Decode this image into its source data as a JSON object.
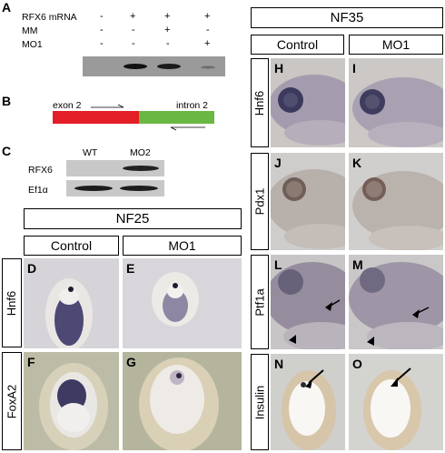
{
  "panelA": {
    "letter": "A",
    "rows": [
      {
        "label": "RFX6 mRNA",
        "marks": [
          "-",
          "+",
          "+",
          "+"
        ]
      },
      {
        "label": "MM",
        "marks": [
          "-",
          "-",
          "+",
          "-"
        ]
      },
      {
        "label": "MO1",
        "marks": [
          "-",
          "-",
          "-",
          "+"
        ]
      }
    ]
  },
  "panelB": {
    "letter": "B",
    "exon_label": "exon 2",
    "intron_label": "intron 2",
    "colors": {
      "exon": "#e31e26",
      "intron": "#6ab843"
    }
  },
  "panelC": {
    "letter": "C",
    "col_wt": "WT",
    "col_mo2": "MO2",
    "row_rfx6": "RFX6",
    "row_ef1a": "Ef1α"
  },
  "nf25": {
    "stage": "NF25",
    "col_control": "Control",
    "col_mo1": "MO1",
    "row_hnf6": "Hnf6",
    "row_foxa2": "FoxA2",
    "letters": {
      "D": "D",
      "E": "E",
      "F": "F",
      "G": "G"
    }
  },
  "nf35": {
    "stage": "NF35",
    "col_control": "Control",
    "col_mo1": "MO1",
    "row_hnf6": "Hnf6",
    "row_pdx1": "Pdx1",
    "row_ptf1a": "Ptf1a",
    "row_insulin": "Insulin",
    "letters": {
      "H": "H",
      "I": "I",
      "J": "J",
      "K": "K",
      "L": "L",
      "M": "M",
      "N": "N",
      "O": "O"
    }
  }
}
